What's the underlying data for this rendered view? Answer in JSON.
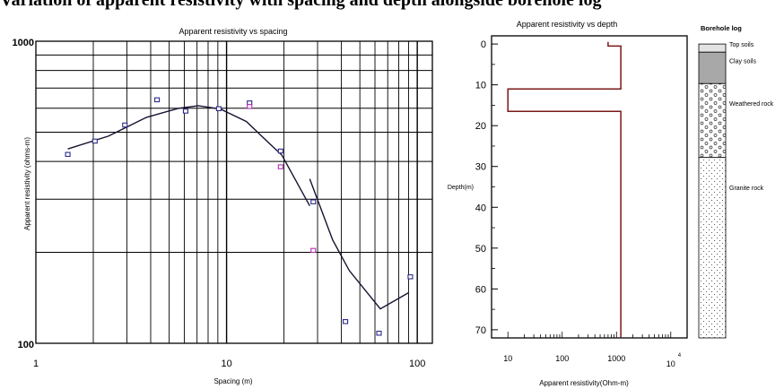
{
  "caption": "Variation of apparent resistivity with spacing and depth alongside borehole log",
  "chart_data": [
    {
      "type": "scatter",
      "title": "Apparent resistivity vs spacing",
      "xlabel": "Spacing (m)",
      "ylabel": "Apparent resistivity (ohms-m)",
      "xscale": "log",
      "yscale": "log",
      "xlim": [
        1,
        120
      ],
      "ylim": [
        100,
        1000
      ],
      "x_ticks": [
        "1",
        "10",
        "100"
      ],
      "y_ticks": [
        "100",
        "1000"
      ],
      "grid": true,
      "series": [
        {
          "style": "markers",
          "color": "#2a2a8a",
          "points": [
            [
              1.47,
              422
            ],
            [
              2.04,
              467
            ],
            [
              2.93,
              528
            ],
            [
              4.32,
              640
            ],
            [
              6.1,
              587
            ],
            [
              9.1,
              598
            ],
            [
              13.2,
              625
            ],
            [
              19.2,
              433
            ],
            [
              28.5,
              294
            ],
            [
              42,
              118
            ],
            [
              63,
              108
            ],
            [
              92,
              166
            ]
          ]
        },
        {
          "style": "markers",
          "color": "#b030b0",
          "points": [
            [
              13.2,
              608
            ],
            [
              19.2,
              384
            ],
            [
              28.5,
              203
            ]
          ]
        },
        {
          "style": "line",
          "color": "#1a1030",
          "points": [
            [
              1.47,
              440
            ],
            [
              2.4,
              485
            ],
            [
              3.8,
              560
            ],
            [
              5.6,
              600
            ],
            [
              7.1,
              612
            ],
            [
              9.3,
              596
            ],
            [
              12.7,
              542
            ],
            [
              16.8,
              458
            ],
            [
              19.5,
              420
            ],
            [
              27.3,
              285
            ]
          ]
        },
        {
          "style": "line",
          "color": "#1a1030",
          "points": [
            [
              27.3,
              350
            ],
            [
              36,
              220
            ],
            [
              44,
              174
            ],
            [
              64,
              130
            ],
            [
              90,
              147
            ]
          ]
        }
      ]
    },
    {
      "type": "line",
      "title": "Apparent resistivity vs depth",
      "xlabel": "Apparent resistivity(Ohm-m)",
      "ylabel": "Depth(m)",
      "xscale": "log",
      "xlim": [
        5,
        20000
      ],
      "ylim": [
        72,
        -2
      ],
      "x_ticks": [
        "10",
        "100",
        "1000",
        "10"
      ],
      "x_tick_superscript": "4",
      "y_ticks": [
        "0",
        "10",
        "20",
        "30",
        "40",
        "50",
        "60",
        "70"
      ],
      "series": [
        {
          "color": "#7a1818",
          "points": [
            [
              700,
              -0.5
            ],
            [
              700,
              0.5
            ],
            [
              1200,
              0.5
            ],
            [
              1200,
              11
            ],
            [
              10,
              11
            ],
            [
              10,
              16.5
            ],
            [
              1200,
              16.5
            ],
            [
              1200,
              72
            ]
          ]
        }
      ]
    }
  ],
  "borehole_log": {
    "title": "Borehole log",
    "layers": [
      {
        "label": "Top soils",
        "pattern": "light-gray",
        "from_m": 0,
        "to_m": 2
      },
      {
        "label": "Clay soils",
        "pattern": "gray",
        "from_m": 2,
        "to_m": 9.7
      },
      {
        "label": "Weathered rock",
        "pattern": "circles",
        "from_m": 9.7,
        "to_m": 27.8
      },
      {
        "label": "Granite rock",
        "pattern": "dots",
        "from_m": 27.8,
        "to_m": 72
      }
    ]
  }
}
